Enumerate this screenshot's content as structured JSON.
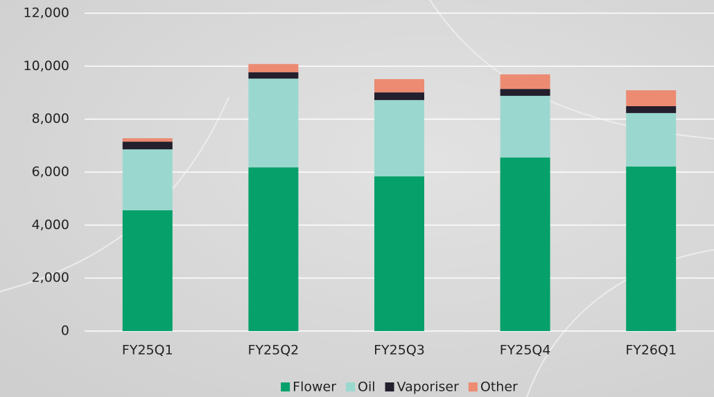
{
  "chart_data": {
    "type": "stacked_bar",
    "categories": [
      "FY25Q1",
      "FY25Q2",
      "FY25Q3",
      "FY25Q4",
      "FY26Q1"
    ],
    "series": [
      {
        "name": "Flower",
        "color": "#06a06a",
        "values": [
          4560,
          6180,
          5840,
          6550,
          6210
        ]
      },
      {
        "name": "Oil",
        "color": "#9ad8cf",
        "values": [
          2300,
          3350,
          2880,
          2330,
          2020
        ]
      },
      {
        "name": "Vaporiser",
        "color": "#231f2c",
        "values": [
          290,
          240,
          290,
          260,
          260
        ]
      },
      {
        "name": "Other",
        "color": "#ec8b72",
        "values": [
          130,
          310,
          500,
          550,
          600
        ]
      }
    ],
    "ylim": [
      0,
      12000
    ],
    "yticks": [
      0,
      {
        "value": 2000,
        "label": "2,000"
      },
      {
        "value": 4000,
        "label": "4,000"
      },
      {
        "value": 6000,
        "label": "6,000"
      },
      {
        "value": 8000,
        "label": "8,000"
      },
      {
        "value": 10000,
        "label": "10,000"
      },
      {
        "value": 12000,
        "label": "12,000"
      }
    ],
    "grid": true,
    "legend": "bottom"
  }
}
